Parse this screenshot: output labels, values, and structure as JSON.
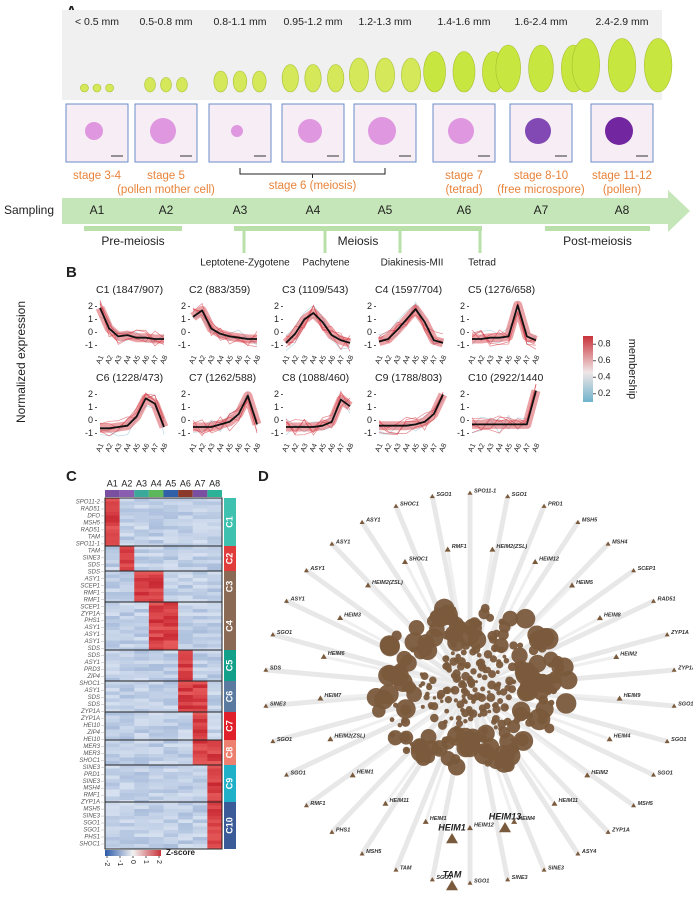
{
  "panel_letters": [
    "A",
    "B",
    "C",
    "D"
  ],
  "panel_a": {
    "sizes": [
      "< 0.5 mm",
      "0.5-0.8 mm",
      "0.8-1.1 mm",
      "0.95-1.2 mm",
      "1.2-1.3 mm",
      "1.4-1.6 mm",
      "1.6-2.4 mm",
      "2.4-2.9 mm"
    ],
    "stages": [
      {
        "label": "stage 3-4"
      },
      {
        "label": "stage 5",
        "sub": "(pollen mother cell)"
      },
      {
        "label": "stage 6 (meiosis)"
      },
      {
        "label": "stage 7",
        "sub": "(tetrad)"
      },
      {
        "label": "stage 8-10",
        "sub": "(free microspore)"
      },
      {
        "label": "stage 11-12",
        "sub": "(pollen)"
      }
    ],
    "sampling_label": "Sampling",
    "samples": [
      "A1",
      "A2",
      "A3",
      "A4",
      "A5",
      "A6",
      "A7",
      "A8"
    ],
    "phases": [
      "Pre-meiosis",
      "Meiosis",
      "Post-meiosis"
    ],
    "substages": [
      "Leptotene-Zygotene",
      "Pachytene",
      "Diakinesis-MII",
      "Tetrad"
    ]
  },
  "panel_b": {
    "ylabel": "Normalized expression",
    "colorbar": {
      "label": "membership",
      "ticks": [
        0.2,
        0.4,
        0.6,
        0.8
      ]
    }
  },
  "chart_data": [
    {
      "type": "line",
      "title": "C1 (1847/907)",
      "categories": [
        "A1",
        "A2",
        "A3",
        "A4",
        "A5",
        "A6",
        "A7",
        "A8"
      ],
      "values": [
        1.9,
        0.3,
        -0.3,
        -0.2,
        -0.4,
        -0.4,
        -0.5,
        -0.5
      ],
      "color": "#111111",
      "ylim": [
        -1.5,
        2.5
      ],
      "yticks": [
        -1,
        0,
        1,
        2
      ]
    },
    {
      "type": "line",
      "title": "C2 (883/359)",
      "categories": [
        "A1",
        "A2",
        "A3",
        "A4",
        "A5",
        "A6",
        "A7",
        "A8"
      ],
      "values": [
        1.2,
        1.7,
        0.3,
        -0.1,
        -0.3,
        -0.4,
        -0.5,
        -0.5
      ],
      "color": "#111111",
      "ylim": [
        -1.5,
        2.5
      ],
      "yticks": [
        -1,
        0,
        1,
        2
      ]
    },
    {
      "type": "line",
      "title": "C3 (1109/543)",
      "categories": [
        "A1",
        "A2",
        "A3",
        "A4",
        "A5",
        "A6",
        "A7",
        "A8"
      ],
      "values": [
        -0.8,
        -0.1,
        1.0,
        1.5,
        0.8,
        -0.2,
        -0.6,
        -0.8
      ],
      "color": "#111111",
      "ylim": [
        -1.5,
        2.5
      ],
      "yticks": [
        -1,
        0,
        1,
        2
      ]
    },
    {
      "type": "line",
      "title": "C4 (1597/704)",
      "categories": [
        "A1",
        "A2",
        "A3",
        "A4",
        "A5",
        "A6",
        "A7",
        "A8"
      ],
      "values": [
        -0.7,
        -0.5,
        0.2,
        1.0,
        1.8,
        0.8,
        -0.6,
        -0.8
      ],
      "color": "#111111",
      "ylim": [
        -1.5,
        2.5
      ],
      "yticks": [
        -1,
        0,
        1,
        2
      ]
    },
    {
      "type": "line",
      "title": "C5 (1276/658)",
      "categories": [
        "A1",
        "A2",
        "A3",
        "A4",
        "A5",
        "A6",
        "A7",
        "A8"
      ],
      "values": [
        -0.5,
        -0.5,
        -0.4,
        -0.4,
        -0.3,
        2.1,
        -0.3,
        -0.6
      ],
      "color": "#111111",
      "ylim": [
        -1.5,
        2.5
      ],
      "yticks": [
        -1,
        0,
        1,
        2
      ]
    },
    {
      "type": "line",
      "title": "C6 (1228/473)",
      "categories": [
        "A1",
        "A2",
        "A3",
        "A4",
        "A5",
        "A6",
        "A7",
        "A8"
      ],
      "values": [
        -0.6,
        -0.6,
        -0.5,
        -0.4,
        0.3,
        1.7,
        1.3,
        -0.5
      ],
      "color": "#111111",
      "ylim": [
        -1.5,
        2.5
      ],
      "yticks": [
        -1,
        0,
        1,
        2
      ]
    },
    {
      "type": "line",
      "title": "C7 (1262/588)",
      "categories": [
        "A1",
        "A2",
        "A3",
        "A4",
        "A5",
        "A6",
        "A7",
        "A8"
      ],
      "values": [
        -0.5,
        -0.5,
        -0.5,
        -0.3,
        -0.1,
        0.5,
        1.9,
        -0.3
      ],
      "color": "#111111",
      "ylim": [
        -1.5,
        2.5
      ],
      "yticks": [
        -1,
        0,
        1,
        2
      ]
    },
    {
      "type": "line",
      "title": "C8 (1088/460)",
      "categories": [
        "A1",
        "A2",
        "A3",
        "A4",
        "A5",
        "A6",
        "A7",
        "A8"
      ],
      "values": [
        -0.5,
        -0.5,
        -0.5,
        -0.5,
        -0.4,
        -0.1,
        1.6,
        1.1
      ],
      "color": "#111111",
      "ylim": [
        -1.5,
        2.5
      ],
      "yticks": [
        -1,
        0,
        1,
        2
      ]
    },
    {
      "type": "line",
      "title": "C9 (1788/803)",
      "categories": [
        "A1",
        "A2",
        "A3",
        "A4",
        "A5",
        "A6",
        "A7",
        "A8"
      ],
      "values": [
        -0.4,
        -0.4,
        -0.4,
        -0.4,
        -0.3,
        -0.1,
        0.5,
        2.0
      ],
      "color": "#111111",
      "ylim": [
        -1.5,
        2.5
      ],
      "yticks": [
        -1,
        0,
        1,
        2
      ]
    },
    {
      "type": "line",
      "title": "C10 (2922/1440",
      "categories": [
        "A1",
        "A2",
        "A3",
        "A4",
        "A5",
        "A6",
        "A7",
        "A8"
      ],
      "values": [
        -0.3,
        -0.3,
        -0.3,
        -0.3,
        -0.3,
        -0.3,
        -0.3,
        2.3
      ],
      "color": "#111111",
      "ylim": [
        -1.5,
        2.5
      ],
      "yticks": [
        -1,
        0,
        1,
        2
      ]
    }
  ],
  "panel_c": {
    "samples": [
      "A1",
      "A2",
      "A3",
      "A4",
      "A5",
      "A6",
      "A7",
      "A8"
    ],
    "clusters": [
      "C1",
      "C2",
      "C3",
      "C4",
      "C5",
      "C6",
      "C7",
      "C8",
      "C9",
      "C10"
    ],
    "genes": [
      "SPO11-2",
      "RAD51",
      "DFO",
      "MSH5",
      "RAD51",
      "TAM",
      "SPO11-1",
      "TAM",
      "SINE3",
      "SDS",
      "SDS",
      "ASY1",
      "SCEP1",
      "RMF1",
      "RMF1",
      "SCEP1",
      "ZYP1A",
      "PHS1",
      "ASY1",
      "ASY1",
      "ASY1",
      "SDS",
      "SDS",
      "ASY1",
      "PRD3",
      "ZIP4",
      "SHOC1",
      "ASY1",
      "SDS",
      "SDS",
      "ZYP1A",
      "ZYP1A",
      "HEI10",
      "ZIP4",
      "HEI10",
      "MER3",
      "MER3",
      "SHOC1",
      "SINE3",
      "PRD1",
      "SINE3",
      "MSH4",
      "RMF1",
      "ZYP1A",
      "MSH5",
      "SINE3",
      "SGO1",
      "SGO1",
      "PHS1",
      "SHOC1"
    ],
    "zscore": {
      "label": "Z-score",
      "ticks": [
        -2,
        -1,
        0,
        1,
        2
      ]
    }
  },
  "panel_d": {
    "outer": [
      "SPO11-1",
      "SGO1",
      "PRD1",
      "MSH5",
      "MSH4",
      "SCEP1",
      "RAD51",
      "ZYP1A",
      "ZYP1A",
      "SGO1",
      "SGO1",
      "SGO1",
      "MSH5",
      "ZYP1A",
      "ASY4",
      "SINE3",
      "SINE3",
      "SGO1",
      "SGO1",
      "TAM",
      "MSH5",
      "PHS1",
      "RMF1",
      "SGO1",
      "SGO1",
      "SINE3",
      "SDS",
      "SGO1",
      "ASY1",
      "ASY1",
      "ASY1",
      "ASY1",
      "SHOC1",
      "SGO1"
    ],
    "inner": [
      "HEIM2(ZSL)",
      "HEIM12",
      "HEIM5",
      "HEIM8",
      "HEIM2",
      "HEIM9",
      "HEIM4",
      "HEIM2",
      "HEIM11",
      "HEIM4",
      "HEIM12",
      "HEIM1",
      "HEIM11",
      "HEIM1",
      "HEIM2(ZSL)",
      "HEIM7",
      "HEIM6",
      "HEIM3",
      "HEIM2(ZSL)",
      "SHOC1",
      "RMF1"
    ],
    "hubs": [
      "HEIM1",
      "HEIM13",
      "TAM"
    ]
  }
}
